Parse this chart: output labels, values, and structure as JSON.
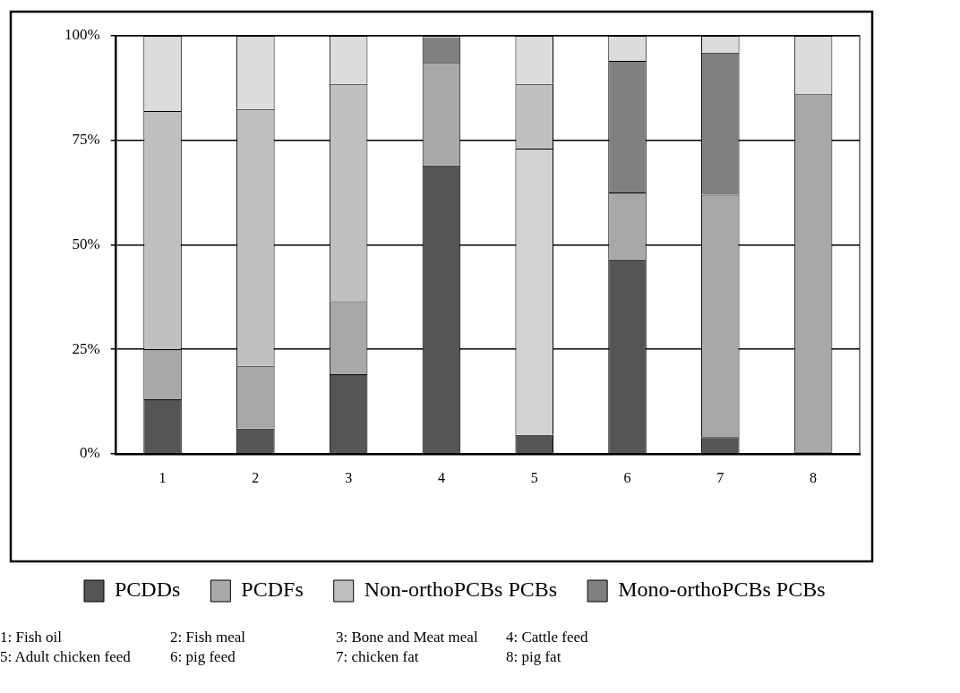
{
  "chart_data": {
    "type": "bar",
    "stacked": true,
    "categories": [
      "1",
      "2",
      "3",
      "4",
      "5",
      "6",
      "7",
      "8"
    ],
    "ylim": [
      0,
      100
    ],
    "yticks": [
      {
        "value": 0,
        "label": "0%"
      },
      {
        "value": 25,
        "label": "25%"
      },
      {
        "value": 50,
        "label": "50%"
      },
      {
        "value": 75,
        "label": "75%"
      },
      {
        "value": 100,
        "label": "100%"
      }
    ],
    "grid": "y",
    "legend": "bottom",
    "series": [
      {
        "name": "PCDDs",
        "color": "#555555",
        "values": [
          13,
          6,
          19,
          69,
          4.5,
          46.5,
          4,
          0.5
        ]
      },
      {
        "name": "PCDFs",
        "color": "#a8a8a8",
        "colors": [
          "#a8a8a8",
          "#a8a8a8",
          "#a8a8a8",
          "#a8a8a8",
          "#d2d2d2",
          "#a8a8a8",
          "#a8a8a8",
          "#a8a8a8"
        ],
        "values": [
          12,
          15,
          17.5,
          24.5,
          68.5,
          16,
          58,
          85.5
        ]
      },
      {
        "name": "Non-orthoPCBs PCBs",
        "color": "#c0c0c0",
        "values": [
          57,
          61.5,
          52,
          null,
          15.5,
          null,
          null,
          null
        ]
      },
      {
        "name": "Mono-orthoPCBs PCBs",
        "color": "#808080",
        "values": [
          null,
          null,
          null,
          6,
          null,
          31.5,
          34,
          null
        ]
      },
      {
        "color": "#dcdcdc",
        "values": [
          18,
          17.5,
          11.5,
          0.5,
          11.5,
          6,
          4,
          14
        ]
      }
    ],
    "annotations": [
      "1: Fish oil",
      "2: Fish meal",
      "3: Bone and Meat meal",
      "4: Cattle feed",
      "5: Adult chicken feed",
      "6: pig feed",
      "7: chicken fat",
      "8: pig fat"
    ]
  }
}
